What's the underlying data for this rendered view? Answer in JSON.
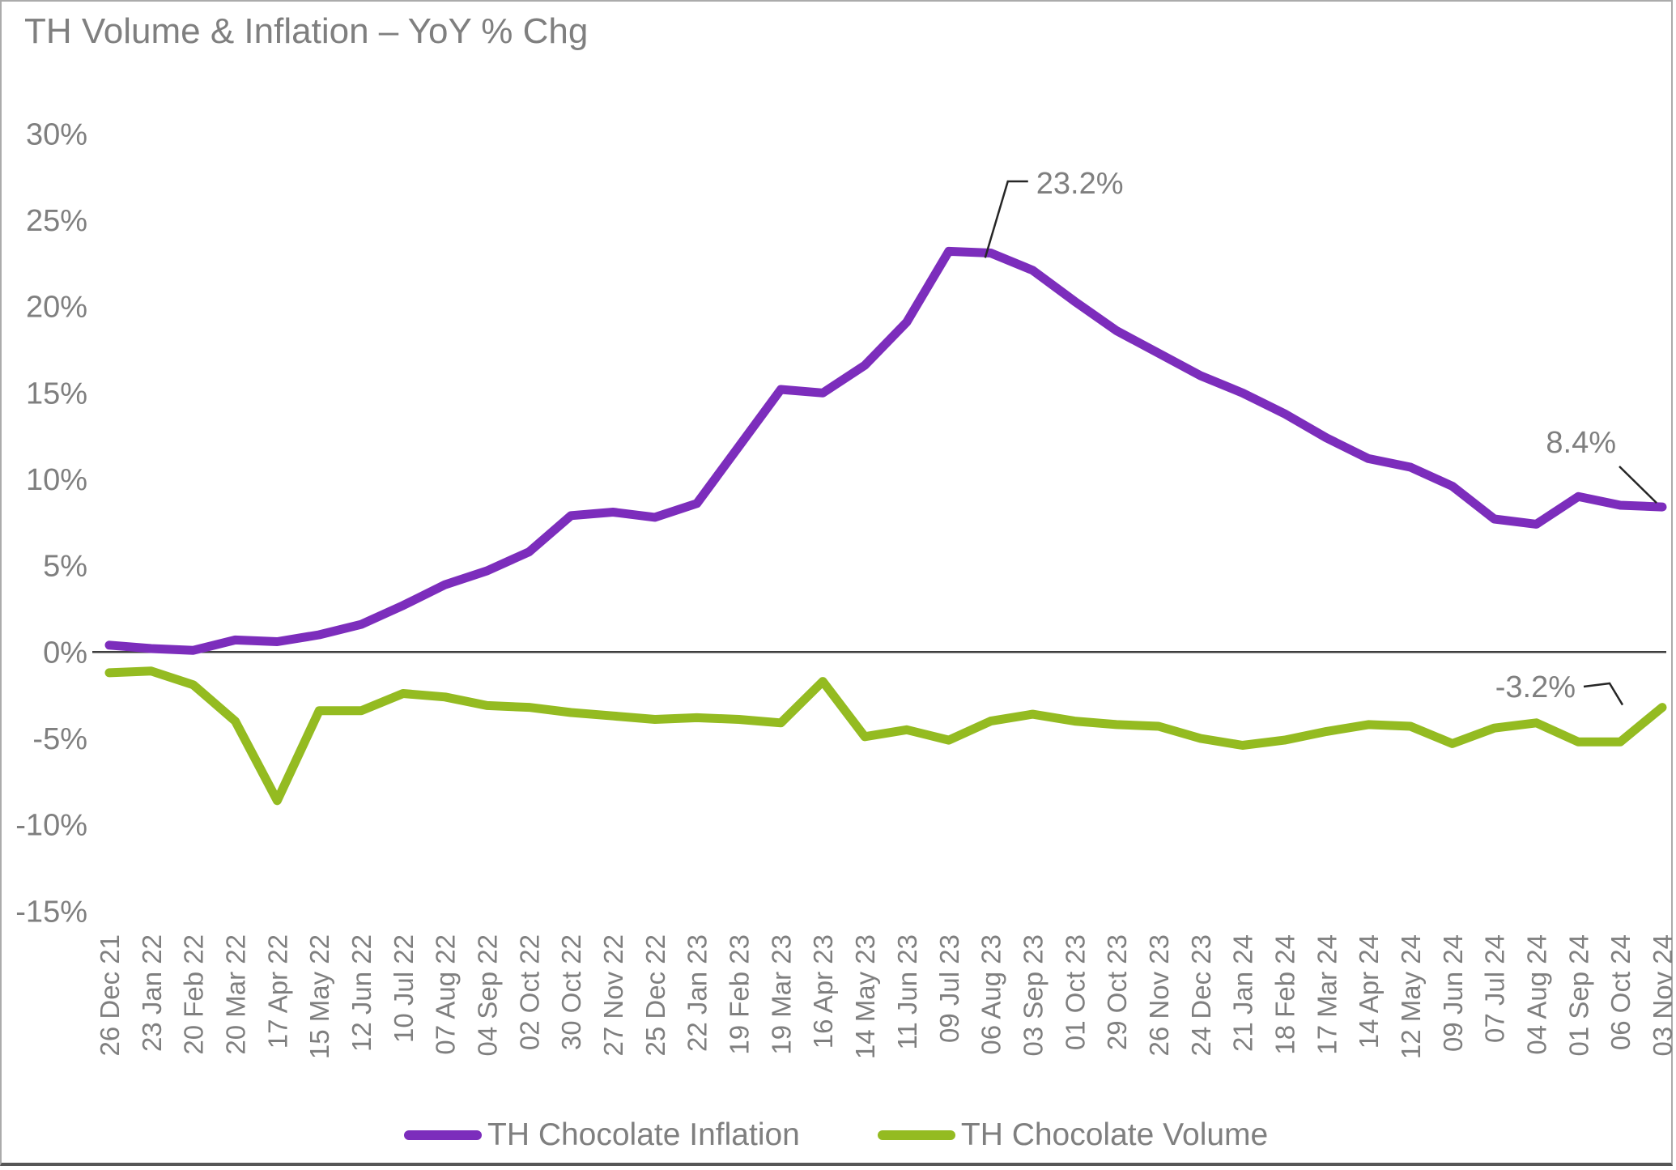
{
  "chart_data": {
    "type": "line",
    "title": "TH Volume & Inflation – YoY % Chg",
    "categories": [
      "26 Dec 21",
      "23 Jan 22",
      "20 Feb 22",
      "20 Mar 22",
      "17 Apr 22",
      "15 May 22",
      "12 Jun 22",
      "10 Jul 22",
      "07 Aug 22",
      "04 Sep 22",
      "02 Oct 22",
      "30 Oct 22",
      "27 Nov 22",
      "25 Dec 22",
      "22 Jan 23",
      "19 Feb 23",
      "19 Mar 23",
      "16 Apr 23",
      "14 May 23",
      "11 Jun 23",
      "09 Jul 23",
      "06 Aug 23",
      "03 Sep 23",
      "01 Oct 23",
      "29 Oct 23",
      "26 Nov 23",
      "24 Dec 23",
      "21 Jan 24",
      "18 Feb 24",
      "17 Mar 24",
      "14 Apr 24",
      "12 May 24",
      "09 Jun 24",
      "07 Jul 24",
      "04 Aug 24",
      "01 Sep 24",
      "06 Oct 24",
      "03 Nov 24"
    ],
    "series": [
      {
        "name": "TH Chocolate Inflation",
        "color": "#7C2DBC",
        "values": [
          0.4,
          0.2,
          0.1,
          0.7,
          0.6,
          1.0,
          1.6,
          2.7,
          3.9,
          4.7,
          5.8,
          7.9,
          8.1,
          7.8,
          8.6,
          11.9,
          15.2,
          15.0,
          16.6,
          19.1,
          23.2,
          23.1,
          22.1,
          20.3,
          18.6,
          17.3,
          16.0,
          15.0,
          13.8,
          12.4,
          11.2,
          10.7,
          9.6,
          7.7,
          7.4,
          9.0,
          8.5,
          8.4
        ]
      },
      {
        "name": "TH Chocolate Volume",
        "color": "#94BB21",
        "values": [
          -1.2,
          -1.1,
          -1.9,
          -4.0,
          -8.6,
          -3.4,
          -3.4,
          -2.4,
          -2.6,
          -3.1,
          -3.2,
          -3.5,
          -3.7,
          -3.9,
          -3.8,
          -3.9,
          -4.1,
          -1.7,
          -4.9,
          -4.5,
          -5.1,
          -4.0,
          -3.6,
          -4.0,
          -4.2,
          -4.3,
          -5.0,
          -5.4,
          -5.1,
          -4.6,
          -4.2,
          -4.3,
          -5.3,
          -4.4,
          -4.1,
          -5.2,
          -5.2,
          -3.2
        ]
      }
    ],
    "y_ticks": [
      "30%",
      "25%",
      "20%",
      "15%",
      "10%",
      "5%",
      "0%",
      "-5%",
      "-10%",
      "-15%"
    ],
    "y_tick_values": [
      30,
      25,
      20,
      15,
      10,
      5,
      0,
      -5,
      -10,
      -15
    ],
    "ylim": [
      -15,
      30
    ],
    "grid": false,
    "legend_position": "bottom",
    "annotations": [
      {
        "series": "TH Chocolate Inflation",
        "category": "09 Jul 23",
        "label": "23.2%"
      },
      {
        "series": "TH Chocolate Inflation",
        "category": "03 Nov 24",
        "label": "8.4%"
      },
      {
        "series": "TH Chocolate Volume",
        "category": "03 Nov 24",
        "label": "-3.2%"
      }
    ],
    "text_color": "#7F7F7F",
    "axis_line_color": "#3F3F3F",
    "leader_line_color": "#262626"
  }
}
